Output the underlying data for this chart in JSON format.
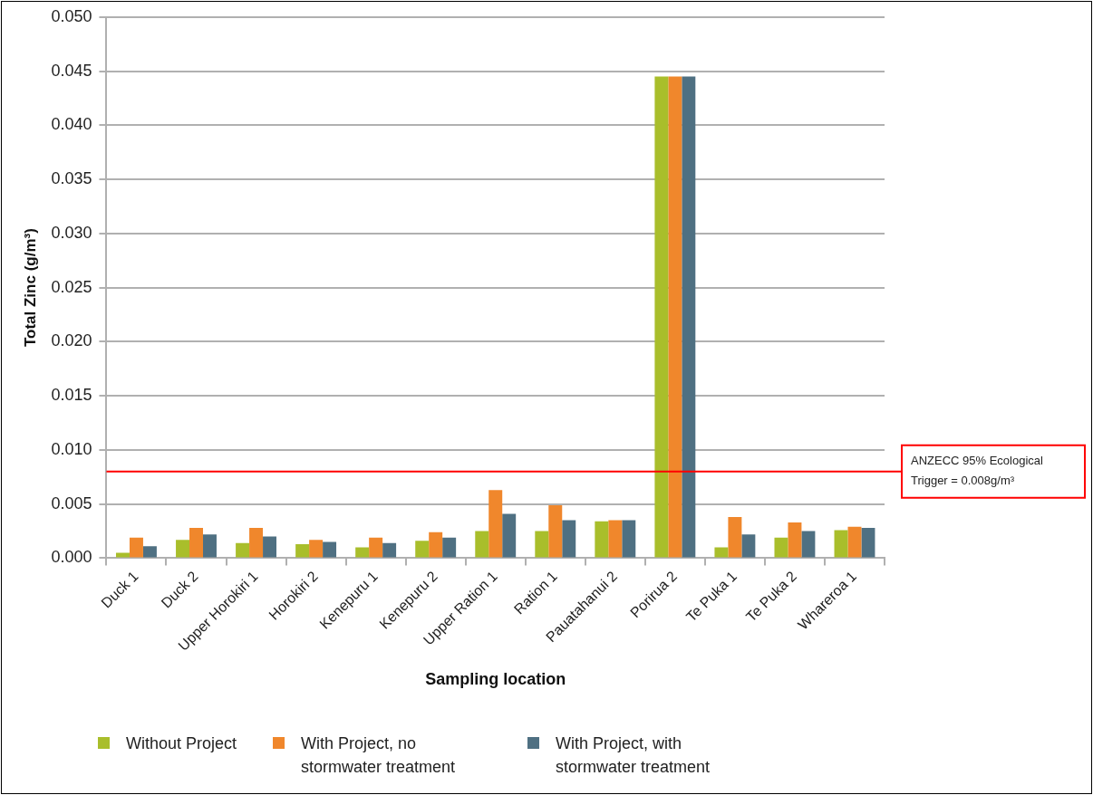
{
  "chart_data": {
    "type": "bar",
    "xlabel": "Sampling location",
    "ylabel": "Total Zinc (g/m³)",
    "categories": [
      "Duck 1",
      "Duck 2",
      "Upper Horokiri 1",
      "Horokiri 2",
      "Kenepuru 1",
      "Kenepuru 2",
      "Upper Ration 1",
      "Ration 1",
      "Pauatahanui 2",
      "Porirua 2",
      "Te Puka 1",
      "Te Puka 2",
      "Whareroa 1"
    ],
    "series": [
      {
        "name": "Without Project",
        "color": "#a9be2b",
        "values": [
          0.0005,
          0.0017,
          0.0014,
          0.0013,
          0.001,
          0.0016,
          0.0025,
          0.0025,
          0.0034,
          0.0445,
          0.001,
          0.0019,
          0.0026
        ]
      },
      {
        "name": "With Project, no stormwater treatment",
        "color": "#f0872c",
        "values": [
          0.0019,
          0.0028,
          0.0028,
          0.0017,
          0.0019,
          0.0024,
          0.0063,
          0.0049,
          0.0035,
          0.0445,
          0.0038,
          0.0033,
          0.0029
        ]
      },
      {
        "name": "With Project, with stormwater treatment",
        "color": "#4f7082",
        "values": [
          0.0011,
          0.0022,
          0.002,
          0.0015,
          0.0014,
          0.0019,
          0.0041,
          0.0035,
          0.0035,
          0.0445,
          0.0022,
          0.0025,
          0.0028
        ]
      }
    ],
    "ylim": [
      0,
      0.05
    ],
    "yticks": [
      {
        "value": 0,
        "label": "0.000"
      },
      {
        "value": 0.005,
        "label": "0.005"
      },
      {
        "value": 0.01,
        "label": "0.010"
      },
      {
        "value": 0.015,
        "label": "0.015"
      },
      {
        "value": 0.02,
        "label": "0.020"
      },
      {
        "value": 0.025,
        "label": "0.025"
      },
      {
        "value": 0.03,
        "label": "0.030"
      },
      {
        "value": 0.035,
        "label": "0.035"
      },
      {
        "value": 0.04,
        "label": "0.040"
      },
      {
        "value": 0.045,
        "label": "0.045"
      },
      {
        "value": 0.05,
        "label": "0.050"
      }
    ],
    "ref_lines": [
      {
        "axis": "y",
        "value": 0.008,
        "label": "ANZECC 95% Ecological Trigger = 0.008g/m³",
        "color": "#ff0000"
      }
    ],
    "grid": "y",
    "legend": "bottom"
  }
}
